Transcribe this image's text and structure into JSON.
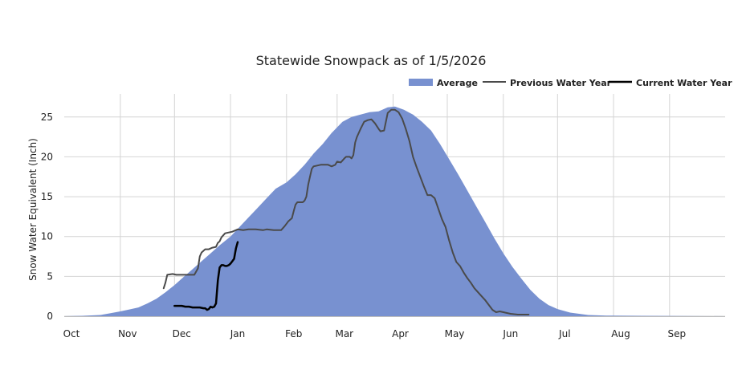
{
  "chart_data": {
    "type": "area",
    "title": "Statewide Snowpack as of 1/5/2026",
    "xlabel": "",
    "ylabel": "Snow Water Equivalent (Inch)",
    "xlim": [
      0,
      365
    ],
    "ylim": [
      0,
      27
    ],
    "yticks": [
      0,
      5,
      10,
      15,
      20,
      25
    ],
    "xticks": [
      {
        "label": "Oct",
        "day": 0
      },
      {
        "label": "Nov",
        "day": 31
      },
      {
        "label": "Dec",
        "day": 61
      },
      {
        "label": "Jan",
        "day": 92
      },
      {
        "label": "Feb",
        "day": 123
      },
      {
        "label": "Mar",
        "day": 151
      },
      {
        "label": "Apr",
        "day": 182
      },
      {
        "label": "May",
        "day": 212
      },
      {
        "label": "Jun",
        "day": 243
      },
      {
        "label": "Jul",
        "day": 273
      },
      {
        "label": "Aug",
        "day": 304
      },
      {
        "label": "Sep",
        "day": 335
      }
    ],
    "grid": true,
    "legend_position": "top-right",
    "series": [
      {
        "name": "Average",
        "style": "area",
        "color": "#7891d0",
        "x": [
          0,
          10,
          20,
          25,
          31,
          36,
          41,
          46,
          51,
          56,
          61,
          66,
          71,
          76,
          81,
          86,
          92,
          97,
          102,
          107,
          112,
          117,
          123,
          128,
          133,
          138,
          143,
          148,
          154,
          159,
          164,
          169,
          174,
          179,
          183,
          188,
          193,
          198,
          203,
          208,
          213,
          218,
          223,
          228,
          233,
          238,
          243,
          248,
          253,
          258,
          263,
          268,
          273,
          280,
          290,
          300,
          320,
          340,
          365
        ],
        "values": [
          0.0,
          0.05,
          0.15,
          0.35,
          0.6,
          0.85,
          1.1,
          1.6,
          2.2,
          3.0,
          3.9,
          4.9,
          5.9,
          6.9,
          7.9,
          8.9,
          10.0,
          11.2,
          12.4,
          13.6,
          14.8,
          16.0,
          16.8,
          17.8,
          19.0,
          20.4,
          21.6,
          23.0,
          24.4,
          25.0,
          25.3,
          25.6,
          25.7,
          26.2,
          26.3,
          25.9,
          25.3,
          24.4,
          23.3,
          21.6,
          19.7,
          17.8,
          15.8,
          13.8,
          11.8,
          9.8,
          7.9,
          6.2,
          4.7,
          3.3,
          2.2,
          1.4,
          0.9,
          0.45,
          0.15,
          0.08,
          0.05,
          0.03,
          0.0
        ]
      },
      {
        "name": "Previous Water Year",
        "style": "line",
        "color": "#4a4a4a",
        "x": [
          55,
          56,
          57,
          60,
          62,
          65,
          68,
          72,
          74,
          75,
          76,
          78,
          80,
          82,
          84,
          85,
          86,
          87,
          89,
          91,
          93,
          96,
          99,
          102,
          106,
          110,
          112,
          116,
          120,
          122,
          124,
          126,
          127,
          128,
          129,
          131,
          132,
          133,
          134,
          135,
          136,
          137,
          138,
          142,
          146,
          148,
          150,
          151,
          153,
          155,
          156,
          158,
          159,
          160,
          161,
          162,
          164,
          166,
          168,
          170,
          172,
          174,
          175,
          177,
          179,
          181,
          183,
          185,
          187,
          189,
          191,
          193,
          195,
          197,
          199,
          201,
          203,
          205,
          207,
          209,
          211,
          213,
          215,
          217,
          219,
          221,
          223,
          225,
          227,
          229,
          231,
          233,
          235,
          237,
          239,
          241,
          243,
          245,
          247,
          249,
          251,
          253,
          255,
          257
        ],
        "values": [
          3.5,
          4.2,
          5.2,
          5.3,
          5.2,
          5.2,
          5.2,
          5.2,
          6.0,
          7.5,
          8.0,
          8.4,
          8.4,
          8.6,
          8.7,
          9.2,
          9.4,
          9.9,
          10.4,
          10.5,
          10.6,
          10.9,
          10.8,
          10.9,
          10.9,
          10.8,
          10.9,
          10.8,
          10.8,
          11.3,
          11.9,
          12.3,
          13.2,
          14.0,
          14.3,
          14.3,
          14.3,
          14.5,
          15.0,
          16.5,
          17.5,
          18.5,
          18.8,
          19.0,
          19.0,
          18.8,
          19.0,
          19.4,
          19.3,
          19.8,
          20.0,
          20.0,
          19.8,
          20.2,
          21.8,
          22.5,
          23.5,
          24.4,
          24.6,
          24.7,
          24.2,
          23.5,
          23.2,
          23.3,
          25.5,
          25.9,
          25.9,
          25.6,
          24.8,
          23.5,
          22.0,
          20.0,
          18.7,
          17.5,
          16.3,
          15.2,
          15.2,
          14.8,
          13.5,
          12.2,
          11.2,
          9.5,
          8.0,
          6.8,
          6.3,
          5.5,
          4.8,
          4.2,
          3.5,
          3.0,
          2.5,
          2.0,
          1.4,
          0.8,
          0.5,
          0.6,
          0.5,
          0.4,
          0.3,
          0.25,
          0.2,
          0.2,
          0.2,
          0.2
        ]
      },
      {
        "name": "Current Water Year",
        "style": "line",
        "color": "#000000",
        "x": [
          61,
          63,
          65,
          67,
          69,
          71,
          73,
          75,
          77,
          78,
          79,
          80,
          81,
          82,
          83,
          84,
          85,
          86,
          87,
          88,
          89,
          90,
          91,
          92,
          93,
          94,
          95,
          96
        ],
        "values": [
          1.3,
          1.3,
          1.3,
          1.2,
          1.2,
          1.1,
          1.1,
          1.1,
          1.0,
          1.0,
          0.8,
          0.9,
          1.2,
          1.1,
          1.2,
          1.6,
          4.5,
          6.1,
          6.4,
          6.4,
          6.3,
          6.3,
          6.4,
          6.6,
          6.9,
          7.2,
          8.5,
          9.3
        ]
      }
    ]
  }
}
